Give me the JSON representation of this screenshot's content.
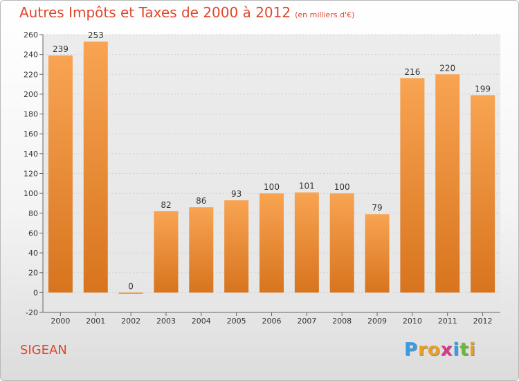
{
  "header": {
    "title": "Autres Impôts et Taxes de 2000 à 2012",
    "unit": "(en milliers d'€)"
  },
  "footer": {
    "city": "SIGEAN",
    "logo_letters": [
      "P",
      "r",
      "o",
      "x",
      "i",
      "t",
      "i"
    ],
    "logo_colors": [
      "#3a9be0",
      "#e8a020",
      "#e8a020",
      "#d43a8a",
      "#3a9be0",
      "#6ab83a",
      "#e8a020"
    ]
  },
  "colors": {
    "bar_top": "#f8a452",
    "bar_bottom": "#d8741e",
    "title": "#e0462c"
  },
  "chart_data": {
    "type": "bar",
    "categories": [
      "2000",
      "2001",
      "2002",
      "2003",
      "2004",
      "2005",
      "2006",
      "2007",
      "2008",
      "2009",
      "2010",
      "2011",
      "2012"
    ],
    "values": [
      239,
      253,
      0,
      82,
      86,
      93,
      100,
      101,
      100,
      79,
      216,
      220,
      199
    ],
    "data_labels": [
      "239",
      "253",
      "0",
      "82",
      "86",
      "93",
      "100",
      "101",
      "100",
      "79",
      "216",
      "220",
      "199"
    ],
    "yticks": [
      -20,
      0,
      20,
      40,
      60,
      80,
      100,
      120,
      140,
      160,
      180,
      200,
      220,
      240,
      260
    ],
    "ylim": [
      -20,
      260
    ],
    "grid": true,
    "legend": "none"
  }
}
